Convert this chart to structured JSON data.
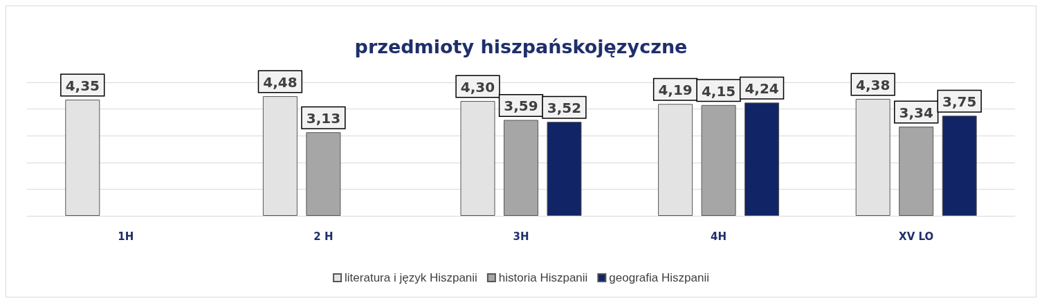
{
  "chart_data": {
    "type": "bar",
    "title": "przedmioty hiszpańskojęzyczne",
    "categories": [
      "1H",
      "2 H",
      "3H",
      "4H",
      "XV LO"
    ],
    "series": [
      {
        "name": "literatura i język Hiszpanii",
        "color": "#e3e3e3",
        "values": [
          4.35,
          4.48,
          4.3,
          4.19,
          4.38
        ],
        "value_labels": [
          "4,35",
          "4,48",
          "4,30",
          "4,19",
          "4,38"
        ]
      },
      {
        "name": "historia Hiszpanii",
        "color": "#a6a6a6",
        "values": [
          null,
          3.13,
          3.59,
          4.15,
          3.34
        ],
        "value_labels": [
          null,
          "3,13",
          "3,59",
          "4,15",
          "3,34"
        ]
      },
      {
        "name": "geografia Hiszpanii",
        "color": "#102466",
        "values": [
          null,
          null,
          3.52,
          4.24,
          3.75
        ],
        "value_labels": [
          null,
          null,
          "3,52",
          "4,24",
          "3,75"
        ]
      }
    ],
    "ylim": [
      0,
      5
    ],
    "yticks": [
      {
        "value": 0,
        "label": null
      },
      {
        "value": 1,
        "label": null
      },
      {
        "value": 2,
        "label": null
      },
      {
        "value": 3,
        "label": null
      },
      {
        "value": 4,
        "label": null
      },
      {
        "value": 5,
        "label": null
      }
    ],
    "tick_labels": "x",
    "grid": "y",
    "legend": "bottom"
  }
}
